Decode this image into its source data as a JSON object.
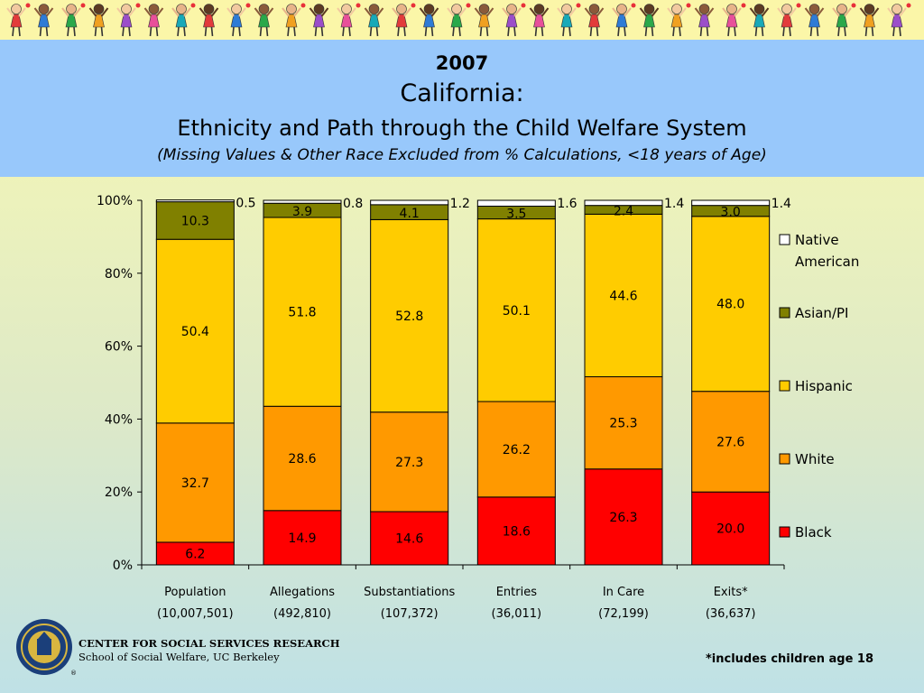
{
  "header": {
    "year": "2007",
    "state": "California:",
    "subtitle": "Ethnicity and Path through the Child Welfare System",
    "note": "(Missing Values & Other Race Excluded from % Calculations, <18 years of Age)"
  },
  "footer": {
    "org_line1": "CENTER FOR SOCIAL SERVICES RESEARCH",
    "org_line2": "School of Social Welfare, UC Berkeley",
    "footnote": "*includes children age 18",
    "seal_mark": "®"
  },
  "chart_data": {
    "type": "bar",
    "stacked": true,
    "categories": [
      "Population",
      "Allegations",
      "Substantiations",
      "Entries",
      "In Care",
      "Exits*"
    ],
    "category_counts": [
      "(10,007,501)",
      "(492,810)",
      "(107,372)",
      "(36,011)",
      "(72,199)",
      "(36,637)"
    ],
    "ylim": [
      0,
      100
    ],
    "yticks": [
      "0%",
      "20%",
      "40%",
      "60%",
      "80%",
      "100%"
    ],
    "legend_position": "right",
    "series": [
      {
        "name": "Black",
        "color": "#ff0000",
        "values": [
          6.2,
          14.9,
          14.6,
          18.6,
          26.3,
          20.0
        ],
        "labels": [
          "6.2",
          "14.9",
          "14.6",
          "18.6",
          "26.3",
          "20.0"
        ]
      },
      {
        "name": "White",
        "color": "#ff9900",
        "values": [
          32.7,
          28.6,
          27.3,
          26.2,
          25.3,
          27.6
        ],
        "labels": [
          "32.7",
          "28.6",
          "27.3",
          "26.2",
          "25.3",
          "27.6"
        ]
      },
      {
        "name": "Hispanic",
        "color": "#ffcc00",
        "values": [
          50.4,
          51.8,
          52.8,
          50.1,
          44.6,
          48.0
        ],
        "labels": [
          "50.4",
          "51.8",
          "52.8",
          "50.1",
          "44.6",
          "48.0"
        ]
      },
      {
        "name": "Asian/PI",
        "color": "#808000",
        "values": [
          10.3,
          3.9,
          4.1,
          3.5,
          2.4,
          3.0
        ],
        "labels": [
          "10.3",
          "3.9",
          "4.1",
          "3.5",
          "2.4",
          "3.0"
        ]
      },
      {
        "name": "Native American",
        "legend_lines": [
          "Native",
          "American"
        ],
        "color": "#ffffff",
        "values": [
          0.5,
          0.8,
          1.2,
          1.6,
          1.4,
          1.4
        ],
        "labels": [
          "0.5",
          "0.8",
          "1.2",
          "1.6",
          "1.4",
          "1.4"
        ]
      }
    ]
  }
}
